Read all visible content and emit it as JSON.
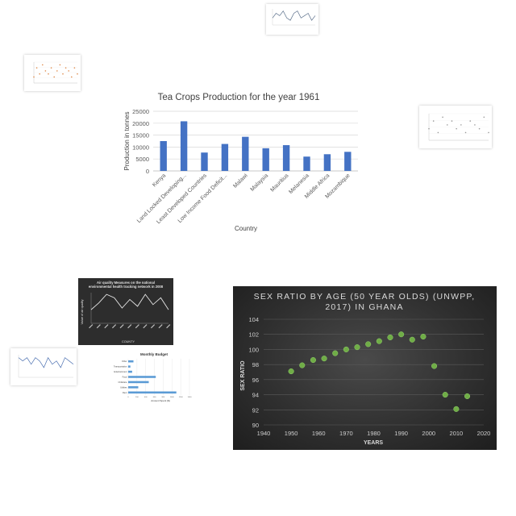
{
  "chart_data": [
    {
      "type": "bar",
      "title": "Tea Crops  Production for the year 1961",
      "xlabel": "Country",
      "ylabel": "Production in tonnes",
      "categories": [
        "Kenya",
        "Land Locked Developing...",
        "Least Developed Countries",
        "Low Income Food Deficit...",
        "Malawi",
        "Malaysia",
        "Mauritius",
        "Melanesia",
        "Middle Africa",
        "Mozambique"
      ],
      "values": [
        12500,
        20800,
        7700,
        11300,
        14300,
        9500,
        10800,
        6000,
        7000,
        8000
      ],
      "ylim": [
        0,
        25000
      ],
      "yticks": [
        "0",
        "5000",
        "10000",
        "15000",
        "20000",
        "25000"
      ],
      "grid": true,
      "color": "#4472c4"
    },
    {
      "type": "scatter",
      "title": "SEX RATIO BY AGE (50 YEAR OLDS) (UNWPP, 2017) IN GHANA",
      "xlabel": "YEARS",
      "ylabel": "SEX RATIO",
      "x": [
        1950,
        1954,
        1958,
        1962,
        1966,
        1970,
        1974,
        1978,
        1982,
        1986,
        1990,
        1994,
        1998,
        2002,
        2006,
        2010,
        2014
      ],
      "y": [
        97.1,
        97.9,
        98.6,
        98.8,
        99.5,
        100.0,
        100.3,
        100.7,
        101.1,
        101.6,
        102.0,
        101.3,
        101.7,
        97.8,
        94.0,
        92.1,
        93.8
      ],
      "xlim": [
        1940,
        2020
      ],
      "ylim": [
        90,
        104
      ],
      "xticks": [
        "1940",
        "1950",
        "1960",
        "1970",
        "1980",
        "1990",
        "2000",
        "2010",
        "2020"
      ],
      "yticks": [
        "90",
        "92",
        "94",
        "96",
        "98",
        "100",
        "102",
        "104"
      ],
      "grid": true,
      "color": "#70ad47"
    },
    {
      "type": "line",
      "title": "Air quality Measures on the national environmental health tracking network in 2008",
      "xlabel": "COUNTY",
      "ylabel": "Value of air quality",
      "values": [
        8,
        12,
        17,
        15,
        9,
        14,
        10,
        17,
        11,
        15,
        8
      ]
    },
    {
      "type": "bar",
      "title": "Monthly Budget",
      "xlabel": "Amount Spent ($)",
      "categories": [
        "Other",
        "Transportation",
        "Entertainment",
        "Food",
        "Childcare",
        "Utilities",
        "Rent"
      ],
      "values": [
        120,
        50,
        90,
        630,
        470,
        230,
        1100
      ],
      "xlim": [
        0,
        1400
      ]
    },
    {
      "type": "line",
      "values": [
        3,
        5,
        4,
        6,
        3,
        2,
        5,
        6,
        3,
        4,
        5,
        2,
        4
      ]
    },
    {
      "type": "scatter",
      "values": [
        2,
        5,
        3,
        6,
        4,
        3,
        5,
        2,
        4,
        6,
        3,
        5,
        4,
        2,
        5,
        3
      ]
    },
    {
      "type": "scatter",
      "values": [
        3,
        5,
        2,
        6,
        4,
        5,
        3,
        4,
        2,
        5,
        4,
        3,
        6,
        2
      ]
    },
    {
      "type": "line",
      "values": [
        6,
        5,
        6,
        4,
        6,
        5,
        3,
        6,
        4,
        5,
        3,
        6,
        5,
        4
      ]
    }
  ]
}
